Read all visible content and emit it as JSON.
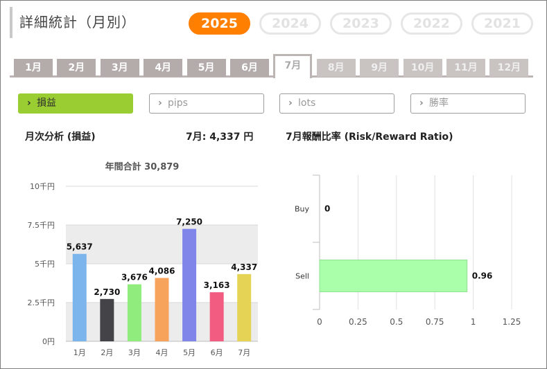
{
  "header": {
    "title": "詳細統計（月別）",
    "years": [
      {
        "label": "2025",
        "active": true
      },
      {
        "label": "2024",
        "active": false
      },
      {
        "label": "2023",
        "active": false
      },
      {
        "label": "2022",
        "active": false
      },
      {
        "label": "2021",
        "active": false
      }
    ]
  },
  "months": [
    {
      "label": "1月",
      "state": "past"
    },
    {
      "label": "2月",
      "state": "past"
    },
    {
      "label": "3月",
      "state": "past"
    },
    {
      "label": "4月",
      "state": "past"
    },
    {
      "label": "5月",
      "state": "past"
    },
    {
      "label": "6月",
      "state": "past"
    },
    {
      "label": "7月",
      "state": "active"
    },
    {
      "label": "8月",
      "state": "future"
    },
    {
      "label": "9月",
      "state": "future"
    },
    {
      "label": "10月",
      "state": "future"
    },
    {
      "label": "11月",
      "state": "future"
    },
    {
      "label": "12月",
      "state": "future"
    }
  ],
  "metrics": [
    {
      "label": "損益",
      "active": true
    },
    {
      "label": "pips",
      "active": false
    },
    {
      "label": "lots",
      "active": false
    },
    {
      "label": "勝率",
      "active": false
    }
  ],
  "section": {
    "left_title": "月次分析 (損益)",
    "month_value": "7月:  4,337 円",
    "right_title": "7月報酬比率 (Risk/Reward Ratio)"
  },
  "colors": {
    "accent": "#ff7f00",
    "metric_active": "#9acd32"
  },
  "chart_data": [
    {
      "type": "bar",
      "title": "年間合計 30,879",
      "categories": [
        "1月",
        "2月",
        "3月",
        "4月",
        "5月",
        "6月",
        "7月"
      ],
      "values": [
        5637,
        2730,
        3676,
        4086,
        7250,
        3163,
        4337
      ],
      "value_labels": [
        "5,637",
        "2,730",
        "3,676",
        "4,086",
        "7,250",
        "3,163",
        "4,337"
      ],
      "colors": [
        "#7cb5ec",
        "#434348",
        "#90ed7d",
        "#f7a35c",
        "#8085e9",
        "#f15c80",
        "#e4d354"
      ],
      "ylim": [
        0,
        10000
      ],
      "yticks": [
        0,
        2500,
        5000,
        7500,
        10000
      ],
      "ytick_labels": [
        "0円",
        "2.5千円",
        "5千円",
        "7.5千円",
        "10千円"
      ],
      "grid": true
    },
    {
      "type": "bar",
      "orientation": "horizontal",
      "categories": [
        "Buy",
        "Sell"
      ],
      "values": [
        0,
        0.96
      ],
      "value_labels": [
        "0",
        "0.96"
      ],
      "color": "#aaffaa",
      "xlim": [
        0,
        1.25
      ],
      "xticks": [
        0,
        0.25,
        0.5,
        0.75,
        1,
        1.25
      ],
      "xtick_labels": [
        "0",
        "0.25",
        "0.5",
        "0.75",
        "1",
        "1.25"
      ],
      "grid": true
    }
  ]
}
